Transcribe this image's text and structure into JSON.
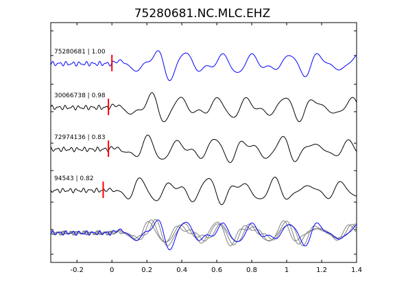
{
  "chart_data": {
    "type": "line",
    "title": "75280681.NC.MLC.EHZ",
    "xlabel": "",
    "ylabel": "",
    "xlim": [
      -0.35,
      1.4
    ],
    "x_ticks": [
      "-0.2",
      "0",
      "0.2",
      "0.4",
      "0.6",
      "0.8",
      "1",
      "1.2",
      "1.4"
    ],
    "x_tick_values": [
      -0.2,
      0,
      0.2,
      0.4,
      0.6,
      0.8,
      1.0,
      1.2,
      1.4
    ],
    "grid": false,
    "legend": "none",
    "colors": {
      "reference": "#0000ff",
      "trace": "#000000",
      "overlay": "#808080",
      "pick": "#ff0000"
    },
    "series": [
      {
        "label": "75280681 | 1.00",
        "id": "75280681",
        "correlation": 1.0,
        "pick_time": 0.0,
        "color": "#0000ff"
      },
      {
        "label": "30066738 | 0.98",
        "id": "30066738",
        "correlation": 0.98,
        "pick_time": -0.02,
        "color": "#000000"
      },
      {
        "label": "72974136 | 0.83",
        "id": "72974136",
        "correlation": 0.83,
        "pick_time": -0.02,
        "color": "#000000"
      },
      {
        "label": "94543 | 0.82",
        "id": "94543",
        "correlation": 0.82,
        "pick_time": -0.05,
        "color": "#000000"
      }
    ],
    "overlay": "all traces superimposed, reference trace in blue"
  }
}
